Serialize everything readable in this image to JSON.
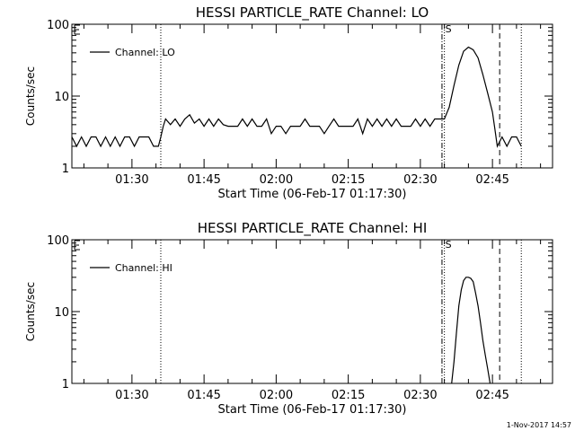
{
  "footer": {
    "date_stamp": "1-Nov-2017 14:57"
  },
  "chart_data": [
    {
      "type": "line",
      "title": "HESSI PARTICLE_RATE Channel: LO",
      "xlabel": "Start Time (06-Feb-17 01:17:30)",
      "ylabel": "Counts/sec",
      "yscale": "log",
      "ylim": [
        1,
        100
      ],
      "yticks": [
        "1",
        "10",
        "100"
      ],
      "xlim": [
        "01:17:30",
        "02:57:30"
      ],
      "xticks": [
        "01:30",
        "01:45",
        "02:00",
        "02:15",
        "02:30",
        "02:45"
      ],
      "legend": {
        "position": "top-left",
        "entries": [
          "Channel: LO"
        ]
      },
      "markers": [
        {
          "time": "01:36:00",
          "style": "dotted"
        },
        {
          "time": "02:34:30",
          "style": "dash-dot"
        },
        {
          "time": "02:35:00",
          "style": "dotted",
          "label": "S"
        },
        {
          "time": "02:46:30",
          "style": "dashed"
        },
        {
          "time": "02:51:00",
          "style": "dotted"
        }
      ],
      "series": [
        {
          "name": "Channel: LO",
          "x": [
            "01:17:30",
            "01:18:30",
            "01:19:30",
            "01:20:30",
            "01:21:30",
            "01:22:30",
            "01:23:30",
            "01:24:30",
            "01:25:30",
            "01:26:30",
            "01:27:30",
            "01:28:30",
            "01:29:30",
            "01:30:30",
            "01:31:30",
            "01:32:30",
            "01:33:30",
            "01:34:30",
            "01:35:30",
            "01:36:00",
            "01:36:30",
            "01:37:00",
            "01:38:00",
            "01:39:00",
            "01:40:00",
            "01:41:00",
            "01:42:00",
            "01:43:00",
            "01:44:00",
            "01:45:00",
            "01:46:00",
            "01:47:00",
            "01:48:00",
            "01:49:00",
            "01:50:00",
            "01:51:00",
            "01:52:00",
            "01:53:00",
            "01:54:00",
            "01:55:00",
            "01:56:00",
            "01:57:00",
            "01:58:00",
            "01:59:00",
            "02:00:00",
            "02:01:00",
            "02:02:00",
            "02:03:00",
            "02:04:00",
            "02:05:00",
            "02:06:00",
            "02:07:00",
            "02:08:00",
            "02:09:00",
            "02:10:00",
            "02:11:00",
            "02:12:00",
            "02:13:00",
            "02:14:00",
            "02:15:00",
            "02:16:00",
            "02:17:00",
            "02:18:00",
            "02:19:00",
            "02:20:00",
            "02:21:00",
            "02:22:00",
            "02:23:00",
            "02:24:00",
            "02:25:00",
            "02:26:00",
            "02:27:00",
            "02:28:00",
            "02:29:00",
            "02:30:00",
            "02:31:00",
            "02:32:00",
            "02:33:00",
            "02:34:00",
            "02:35:00",
            "02:36:00",
            "02:37:00",
            "02:38:00",
            "02:39:00",
            "02:40:00",
            "02:41:00",
            "02:42:00",
            "02:43:00",
            "02:44:00",
            "02:45:00",
            "02:45:30",
            "02:46:00",
            "02:47:00",
            "02:48:00",
            "02:49:00",
            "02:50:00",
            "02:51:00"
          ],
          "y": [
            2.7,
            2,
            2.7,
            2,
            2.7,
            2.7,
            2,
            2.7,
            2,
            2.7,
            2,
            2.7,
            2.7,
            2,
            2.7,
            2.7,
            2.7,
            2,
            2,
            2.7,
            3.8,
            4.8,
            4,
            4.8,
            3.8,
            4.8,
            5.5,
            4.2,
            4.8,
            3.8,
            4.8,
            3.8,
            4.8,
            4,
            3.8,
            3.8,
            3.8,
            4.8,
            3.8,
            4.8,
            3.8,
            3.8,
            4.8,
            3,
            3.8,
            3.8,
            3,
            3.8,
            3.8,
            3.8,
            4.8,
            3.8,
            3.8,
            3.8,
            3,
            3.8,
            4.8,
            3.8,
            3.8,
            3.8,
            3.8,
            4.8,
            3,
            4.8,
            3.8,
            4.8,
            3.8,
            4.8,
            3.8,
            4.8,
            3.8,
            3.8,
            3.8,
            4.8,
            3.8,
            4.8,
            3.8,
            4.8,
            4.8,
            4.8,
            7,
            14,
            27,
            42,
            48,
            44,
            34,
            20,
            11,
            6,
            3.5,
            2,
            2.7,
            2,
            2.7,
            2.7,
            2
          ]
        }
      ]
    },
    {
      "type": "line",
      "title": "HESSI PARTICLE_RATE Channel: HI",
      "xlabel": "Start Time (06-Feb-17 01:17:30)",
      "ylabel": "Counts/sec",
      "yscale": "log",
      "ylim": [
        1,
        100
      ],
      "yticks": [
        "1",
        "10",
        "100"
      ],
      "xlim": [
        "01:17:30",
        "02:57:30"
      ],
      "xticks": [
        "01:30",
        "01:45",
        "02:00",
        "02:15",
        "02:30",
        "02:45"
      ],
      "legend": {
        "position": "top-left",
        "entries": [
          "Channel: HI"
        ]
      },
      "markers": [
        {
          "time": "01:36:00",
          "style": "dotted"
        },
        {
          "time": "02:34:30",
          "style": "dash-dot"
        },
        {
          "time": "02:35:00",
          "style": "dotted",
          "label": "S"
        },
        {
          "time": "02:46:30",
          "style": "dashed"
        },
        {
          "time": "02:51:00",
          "style": "dotted"
        }
      ],
      "series": [
        {
          "name": "Channel: HI",
          "x": [
            "02:36:30",
            "02:37:00",
            "02:37:30",
            "02:38:00",
            "02:38:30",
            "02:39:00",
            "02:39:30",
            "02:40:00",
            "02:40:30",
            "02:41:00",
            "02:41:30",
            "02:42:00",
            "02:42:30",
            "02:43:00",
            "02:43:30",
            "02:44:00",
            "02:44:30"
          ],
          "y": [
            1,
            2,
            5,
            12,
            20,
            27,
            30,
            30,
            29,
            26,
            18,
            12,
            7,
            4,
            2.5,
            1.6,
            1
          ]
        }
      ]
    }
  ]
}
